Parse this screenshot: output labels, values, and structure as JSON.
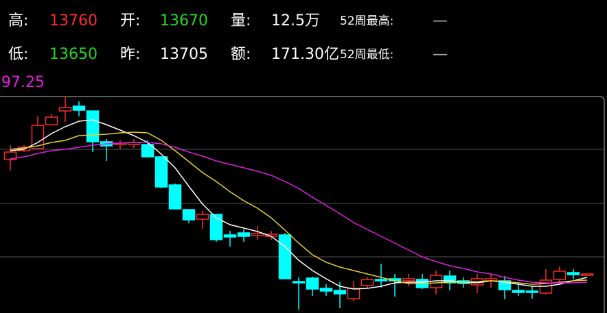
{
  "quote": {
    "rows": [
      [
        {
          "label": "高:",
          "value": "13760",
          "color": "#ff2b2b"
        },
        {
          "label": "开:",
          "value": "13670",
          "color": "#22d922"
        },
        {
          "label": "量:",
          "value": "12.5万",
          "color": "#ffffff"
        },
        {
          "label": "52周最高:",
          "value": "—",
          "color": "#aaaaaa"
        }
      ],
      [
        {
          "label": "低:",
          "value": "13650",
          "color": "#22d922"
        },
        {
          "label": "昨:",
          "value": "13705",
          "color": "#ffffff"
        },
        {
          "label": "额:",
          "value": "171.30亿",
          "color": "#ffffff"
        },
        {
          "label": "52周最低:",
          "value": "—",
          "color": "#aaaaaa"
        }
      ]
    ]
  },
  "chart_data": {
    "type": "candlestick",
    "top_label": "97.25",
    "top_label_color": "#e020e0",
    "ylim": [
      13489,
      13800
    ],
    "up_color": "#ff2b2b",
    "down_color": "#00ffff",
    "open": [
      13708,
      13721,
      13724,
      13759,
      13779,
      13786,
      13779,
      13734,
      13730,
      13730,
      13730,
      13712,
      13671,
      13635,
      13621,
      13628,
      13598,
      13601,
      13597,
      13596,
      13598,
      13530,
      13535,
      13520,
      13517,
      13505,
      13524,
      13533,
      13534,
      13531,
      13533,
      13521,
      13538,
      13531,
      13525,
      13531,
      13531,
      13517,
      13516,
      13513,
      13533,
      13543,
      13539
    ],
    "close": [
      13719,
      13726,
      13758,
      13770,
      13784,
      13780,
      13734,
      13728,
      13732,
      13733,
      13712,
      13668,
      13636,
      13620,
      13628,
      13591,
      13595,
      13596,
      13600,
      13599,
      13534,
      13528,
      13519,
      13516,
      13512,
      13520,
      13533,
      13531,
      13531,
      13534,
      13521,
      13539,
      13528,
      13527,
      13534,
      13534,
      13518,
      13514,
      13514,
      13532,
      13545,
      13540,
      13541
    ],
    "high": [
      13729,
      13729,
      13771,
      13775,
      13799,
      13793,
      13779,
      13738,
      13736,
      13738,
      13736,
      13713,
      13673,
      13636,
      13633,
      13629,
      13604,
      13606,
      13611,
      13604,
      13601,
      13536,
      13537,
      13526,
      13529,
      13531,
      13536,
      13556,
      13541,
      13541,
      13541,
      13546,
      13546,
      13536,
      13541,
      13541,
      13538,
      13526,
      13523,
      13548,
      13552,
      13548,
      13541
    ],
    "low": [
      13692,
      13719,
      13724,
      13759,
      13763,
      13771,
      13719,
      13706,
      13723,
      13725,
      13711,
      13666,
      13635,
      13615,
      13607,
      13588,
      13581,
      13588,
      13591,
      13591,
      13534,
      13489,
      13509,
      13509,
      13491,
      13501,
      13521,
      13521,
      13508,
      13523,
      13519,
      13511,
      13517,
      13521,
      13513,
      13521,
      13504,
      13509,
      13505,
      13511,
      13529,
      13533,
      13539
    ],
    "series": [
      {
        "color": "#ffffff",
        "values": [
          13721,
          13723,
          13733,
          13746,
          13756,
          13764,
          13766,
          13759,
          13751,
          13743,
          13733,
          13716,
          13696,
          13669,
          13643,
          13623,
          13613,
          13608,
          13603,
          13596,
          13581,
          13561,
          13546,
          13534,
          13523,
          13519,
          13520,
          13523,
          13528,
          13529,
          13529,
          13531,
          13531,
          13529,
          13528,
          13531,
          13529,
          13526,
          13523,
          13523,
          13526,
          13531,
          13536
        ]
      },
      {
        "color": "#e8d12a",
        "values": [
          13723,
          13725,
          13728,
          13733,
          13736,
          13743,
          13744,
          13745,
          13747,
          13748,
          13747,
          13736,
          13721,
          13705,
          13689,
          13676,
          13661,
          13648,
          13637,
          13623,
          13605,
          13586,
          13569,
          13558,
          13551,
          13546,
          13541,
          13536,
          13531,
          13527,
          13527,
          13528,
          13529,
          13529,
          13530,
          13531,
          13530,
          13528,
          13526,
          13527,
          13529,
          13531,
          13532
        ]
      },
      {
        "color": "#e020e0",
        "values": [
          13709,
          13712,
          13717,
          13721,
          13723,
          13726,
          13729,
          13731,
          13732,
          13733,
          13733,
          13731,
          13726,
          13719,
          13713,
          13706,
          13701,
          13696,
          13691,
          13685,
          13676,
          13666,
          13653,
          13641,
          13629,
          13616,
          13606,
          13596,
          13586,
          13576,
          13566,
          13559,
          13553,
          13549,
          13544,
          13541,
          13536,
          13532,
          13529,
          13528,
          13528,
          13528,
          13529
        ]
      }
    ]
  }
}
